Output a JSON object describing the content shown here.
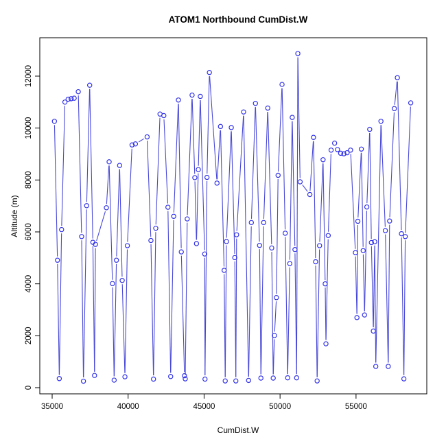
{
  "chart_data": {
    "type": "line",
    "title": "ATOM1 Northbound CumDist.W",
    "xlabel": "CumDist.W",
    "ylabel": "Altitude (m)",
    "x_ticks": [
      35000,
      40000,
      45000,
      50000,
      55000
    ],
    "y_ticks": [
      0,
      2000,
      4000,
      6000,
      8000,
      10000,
      12000
    ],
    "xlim": [
      34187,
      59657
    ],
    "ylim": [
      -238,
      13479
    ],
    "grid": false,
    "legend": "none",
    "marker": "open-circle",
    "line_style": "points-joined-with-gaps",
    "line_color": "#4848d8",
    "point_color": "#3232e8",
    "axis_color": "#000000",
    "bg_color": "#ffffff",
    "points": [
      [
        35150,
        10260
      ],
      [
        35350,
        4910
      ],
      [
        35470,
        350
      ],
      [
        35620,
        6090
      ],
      [
        35840,
        11000
      ],
      [
        36050,
        11110
      ],
      [
        36250,
        11130
      ],
      [
        36450,
        11150
      ],
      [
        36720,
        11400
      ],
      [
        36940,
        5820
      ],
      [
        37060,
        250
      ],
      [
        37270,
        7010
      ],
      [
        37470,
        11650
      ],
      [
        37680,
        5600
      ],
      [
        37790,
        470
      ],
      [
        37850,
        5520
      ],
      [
        38570,
        6930
      ],
      [
        38750,
        8700
      ],
      [
        38970,
        4010
      ],
      [
        39080,
        290
      ],
      [
        39230,
        4910
      ],
      [
        39440,
        8560
      ],
      [
        39610,
        4130
      ],
      [
        39790,
        420
      ],
      [
        39950,
        5470
      ],
      [
        40260,
        9350
      ],
      [
        40480,
        9390
      ],
      [
        41250,
        9660
      ],
      [
        41500,
        5670
      ],
      [
        41670,
        330
      ],
      [
        41820,
        6140
      ],
      [
        42100,
        10540
      ],
      [
        42350,
        10480
      ],
      [
        42620,
        6950
      ],
      [
        42800,
        430
      ],
      [
        43000,
        6600
      ],
      [
        43310,
        11080
      ],
      [
        43500,
        5230
      ],
      [
        43710,
        460
      ],
      [
        43760,
        340
      ],
      [
        43890,
        6500
      ],
      [
        44210,
        11270
      ],
      [
        44390,
        8090
      ],
      [
        44500,
        5550
      ],
      [
        44620,
        8400
      ],
      [
        44750,
        11220
      ],
      [
        45040,
        5150
      ],
      [
        45060,
        330
      ],
      [
        45190,
        8100
      ],
      [
        45350,
        12140
      ],
      [
        45850,
        7880
      ],
      [
        46080,
        10060
      ],
      [
        46320,
        4520
      ],
      [
        46390,
        260
      ],
      [
        46470,
        5630
      ],
      [
        46790,
        10020
      ],
      [
        47020,
        5010
      ],
      [
        47090,
        260
      ],
      [
        47140,
        5890
      ],
      [
        47600,
        10620
      ],
      [
        47930,
        280
      ],
      [
        48110,
        6360
      ],
      [
        48380,
        10950
      ],
      [
        48650,
        5480
      ],
      [
        48740,
        370
      ],
      [
        48920,
        6360
      ],
      [
        49190,
        10770
      ],
      [
        49450,
        5380
      ],
      [
        49550,
        370
      ],
      [
        49630,
        2010
      ],
      [
        49760,
        3470
      ],
      [
        49870,
        8180
      ],
      [
        50130,
        11680
      ],
      [
        50340,
        5950
      ],
      [
        50500,
        380
      ],
      [
        50640,
        4780
      ],
      [
        50800,
        10410
      ],
      [
        50980,
        5320
      ],
      [
        51090,
        380
      ],
      [
        51170,
        12870
      ],
      [
        51320,
        7930
      ],
      [
        51960,
        7440
      ],
      [
        52200,
        9640
      ],
      [
        52340,
        4850
      ],
      [
        52440,
        260
      ],
      [
        52600,
        5470
      ],
      [
        52830,
        8780
      ],
      [
        52970,
        4000
      ],
      [
        53020,
        1690
      ],
      [
        53170,
        5860
      ],
      [
        53360,
        9150
      ],
      [
        53590,
        9420
      ],
      [
        53780,
        9170
      ],
      [
        53990,
        9030
      ],
      [
        54200,
        9010
      ],
      [
        54410,
        9050
      ],
      [
        54640,
        9150
      ],
      [
        54960,
        5200
      ],
      [
        55060,
        2700
      ],
      [
        55120,
        6410
      ],
      [
        55350,
        9190
      ],
      [
        55470,
        5280
      ],
      [
        55560,
        2800
      ],
      [
        55710,
        6960
      ],
      [
        55900,
        9950
      ],
      [
        56010,
        5590
      ],
      [
        56140,
        2180
      ],
      [
        56230,
        5620
      ],
      [
        56300,
        820
      ],
      [
        56640,
        10260
      ],
      [
        56930,
        6050
      ],
      [
        57120,
        820
      ],
      [
        57210,
        6420
      ],
      [
        57520,
        10750
      ],
      [
        57720,
        11940
      ],
      [
        57990,
        5930
      ],
      [
        58150,
        340
      ],
      [
        58240,
        5820
      ],
      [
        58600,
        10970
      ]
    ]
  }
}
